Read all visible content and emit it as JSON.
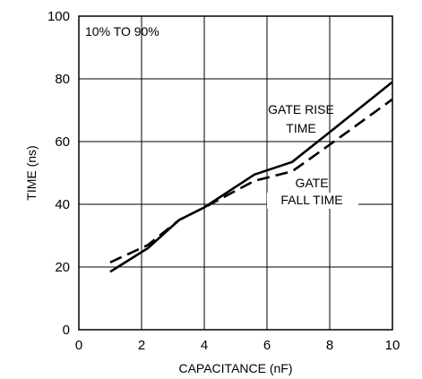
{
  "chart_data": {
    "type": "line",
    "xlabel": "CAPACITANCE (nF)",
    "ylabel": "TIME (ns)",
    "xlim": [
      0,
      10
    ],
    "ylim": [
      0,
      100
    ],
    "x_ticks": [
      0,
      2,
      4,
      6,
      8,
      10
    ],
    "y_ticks": [
      0,
      20,
      40,
      60,
      80,
      100
    ],
    "grid": true,
    "annotation": "10% TO 90%",
    "series": [
      {
        "name_lines": [
          "GATE RISE",
          "TIME"
        ],
        "style": "solid",
        "x": [
          1,
          2.2,
          3.2,
          4,
          5.6,
          6.8,
          8,
          10
        ],
        "y": [
          18.5,
          26,
          35,
          39,
          49.5,
          53.5,
          63,
          79
        ]
      },
      {
        "name_lines": [
          "GATE",
          "FALL TIME"
        ],
        "style": "dashed",
        "x": [
          1,
          2.2,
          3.2,
          4,
          5.6,
          6.8,
          8,
          10
        ],
        "y": [
          21.5,
          27,
          35,
          39,
          47.5,
          50.5,
          59,
          73.5
        ]
      }
    ]
  }
}
